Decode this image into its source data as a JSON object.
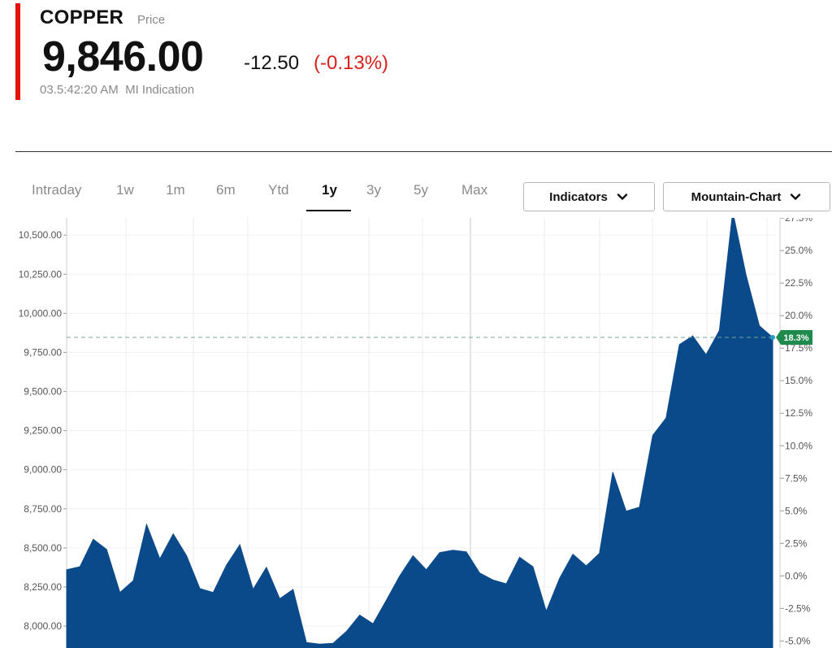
{
  "quote": {
    "symbol": "COPPER",
    "symbol_sub": "Price",
    "price": "9,846.00",
    "change": "-12.50",
    "change_pct": "(-0.13%)",
    "timestamp": "03.5:42:20 AM",
    "source": "MI Indication"
  },
  "colors": {
    "accent": "#e3120b",
    "negative": "#d9201a",
    "area_fill": "#0a4a8a",
    "marker": "#1e8a4c"
  },
  "tabs": [
    {
      "label": "Intraday",
      "active": false
    },
    {
      "label": "1w",
      "active": false
    },
    {
      "label": "1m",
      "active": false
    },
    {
      "label": "6m",
      "active": false
    },
    {
      "label": "Ytd",
      "active": false
    },
    {
      "label": "1y",
      "active": true
    },
    {
      "label": "3y",
      "active": false
    },
    {
      "label": "5y",
      "active": false
    },
    {
      "label": "Max",
      "active": false
    }
  ],
  "controls": {
    "indicators_label": "Indicators",
    "chart_type_label": "Mountain-Chart",
    "dropdown_icon": "chevron-down-icon"
  },
  "chart_data": {
    "type": "area",
    "title": "",
    "xlabel": "",
    "ylabel": "",
    "ylim": [
      7860,
      10610
    ],
    "y_ticks": [
      "8,000.00",
      "8,250.00",
      "8,500.00",
      "8,750.00",
      "9,000.00",
      "9,250.00",
      "9,500.00",
      "9,750.00",
      "10,000.00",
      "10,250.00",
      "10,500.00"
    ],
    "y_tick_values": [
      8000,
      8250,
      8500,
      8750,
      9000,
      9250,
      9500,
      9750,
      10000,
      10250,
      10500
    ],
    "y2_ticks": [
      "-5.0%",
      "-2.5%",
      "0.0%",
      "2.5%",
      "5.0%",
      "7.5%",
      "10.0%",
      "12.5%",
      "15.0%",
      "17.5%",
      "20.0%",
      "22.5%",
      "25.0%",
      "27.5%"
    ],
    "y2_tick_values": [
      -5,
      -2.5,
      0,
      2.5,
      5,
      7.5,
      10,
      12.5,
      15,
      17.5,
      20,
      22.5,
      25,
      27.5
    ],
    "y2_ratio": 0.0032,
    "reference_value": 8321,
    "current_value": 9846,
    "current_label": "18.3%",
    "grid": true,
    "series": [
      {
        "values": [
          8360,
          8380,
          8555,
          8490,
          8215,
          8290,
          8650,
          8430,
          8590,
          8450,
          8240,
          8215,
          8390,
          8520,
          8235,
          8375,
          8175,
          8235,
          7895,
          7885,
          7890,
          7965,
          8070,
          8015,
          8165,
          8320,
          8450,
          8360,
          8470,
          8485,
          8475,
          8340,
          8295,
          8270,
          8440,
          8380,
          8095,
          8305,
          8460,
          8385,
          8465,
          8985,
          8735,
          8760,
          9220,
          9330,
          9800,
          9855,
          9735,
          9890,
          10650,
          10245,
          9920,
          9846
        ]
      }
    ]
  }
}
